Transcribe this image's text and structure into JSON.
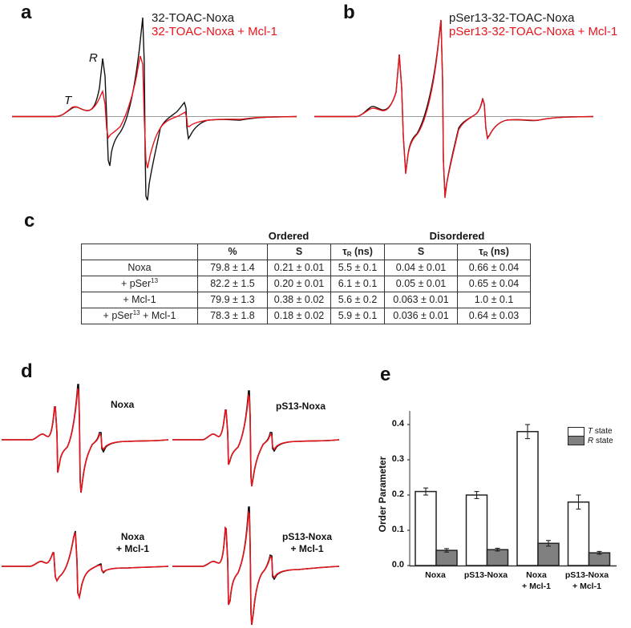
{
  "panels": {
    "a": {
      "label": "a",
      "legend": [
        "32-TOAC-Noxa",
        "32-TOAC-Noxa + Mcl-1"
      ],
      "annotations": {
        "T": "T",
        "R": "R"
      }
    },
    "b": {
      "label": "b",
      "legend": [
        "pSer13-32-TOAC-Noxa",
        "pSer13-32-TOAC-Noxa + Mcl-1"
      ]
    },
    "c": {
      "label": "c",
      "group_headers": {
        "ordered": "Ordered",
        "disordered": "Disordered"
      },
      "columns": [
        "",
        "%",
        "S",
        "τR (ns)",
        "S",
        "τR (ns)"
      ],
      "column_header_parts": {
        "tau": "τ",
        "tau_sub": "R",
        "tau_unit": " (ns)"
      },
      "rows": [
        {
          "name": "Noxa",
          "name_parts": [
            "Noxa"
          ],
          "pct": "79.8 ± 1.4",
          "s_ord": "0.21 ± 0.01",
          "tau_ord": "5.5 ± 0.1",
          "s_dis": "0.04 ± 0.01",
          "tau_dis": "0.66 ± 0.04"
        },
        {
          "name": "+ pSer13",
          "name_parts": [
            "+ pSer",
            "13",
            ""
          ],
          "pct": "82.2 ± 1.5",
          "s_ord": "0.20 ± 0.01",
          "tau_ord": "6.1 ± 0.1",
          "s_dis": "0.05 ± 0.01",
          "tau_dis": "0.65 ± 0.04"
        },
        {
          "name": "+ Mcl-1",
          "name_parts": [
            "+ Mcl-1"
          ],
          "pct": "79.9 ± 1.3",
          "s_ord": "0.38 ± 0.02",
          "tau_ord": "5.6 ± 0.2",
          "s_dis": "0.063 ± 0.01",
          "tau_dis": "1.0 ± 0.1"
        },
        {
          "name": "+ pSer13 + Mcl-1",
          "name_parts": [
            "+ pSer",
            "13",
            " + Mcl-1"
          ],
          "pct": "78.3 ± 1.8",
          "s_ord": "0.18 ± 0.02",
          "tau_ord": "5.9 ± 0.1",
          "s_dis": "0.036 ± 0.01",
          "tau_dis": "0.64 ± 0.03"
        }
      ]
    },
    "d": {
      "label": "d",
      "spectra_labels": [
        {
          "line1": "Noxa",
          "line2": ""
        },
        {
          "line1": "pS13-Noxa",
          "line2": ""
        },
        {
          "line1": "Noxa",
          "line2": "+ Mcl-1"
        },
        {
          "line1": "pS13-Noxa",
          "line2": "+ Mcl-1"
        }
      ]
    },
    "e": {
      "label": "e"
    }
  },
  "colors": {
    "experimental": "#111111",
    "simulated_or_bound": "#e8141c",
    "baseline": "#9a9a9a",
    "t_state_fill": "#ffffff",
    "r_state_fill": "#808080"
  },
  "chart_data": [
    {
      "type": "line",
      "title": "32-TOAC-Noxa EPR spectra",
      "panel": "a",
      "xlabel": "",
      "ylabel": "",
      "series": [
        {
          "name": "32-TOAC-Noxa",
          "color": "#111111"
        },
        {
          "name": "32-TOAC-Noxa + Mcl-1",
          "color": "#e8141c"
        }
      ],
      "annotations": [
        "T",
        "R"
      ],
      "grid": false
    },
    {
      "type": "line",
      "title": "pSer13-32-TOAC-Noxa EPR spectra",
      "panel": "b",
      "series": [
        {
          "name": "pSer13-32-TOAC-Noxa",
          "color": "#111111"
        },
        {
          "name": "pSer13-32-TOAC-Noxa + Mcl-1",
          "color": "#e8141c"
        }
      ],
      "grid": false
    },
    {
      "type": "table",
      "panel": "c",
      "columns": [
        "",
        "Ordered %",
        "Ordered S",
        "Ordered τR (ns)",
        "Disordered S",
        "Disordered τR (ns)"
      ],
      "rows": [
        [
          "Noxa",
          "79.8 ± 1.4",
          "0.21 ± 0.01",
          "5.5 ± 0.1",
          "0.04 ± 0.01",
          "0.66 ± 0.04"
        ],
        [
          "+ pSer13",
          "82.2 ± 1.5",
          "0.20 ± 0.01",
          "6.1 ± 0.1",
          "0.05 ± 0.01",
          "0.65 ± 0.04"
        ],
        [
          "+ Mcl-1",
          "79.9 ± 1.3",
          "0.38 ± 0.02",
          "5.6 ± 0.2",
          "0.063 ± 0.01",
          "1.0 ± 0.1"
        ],
        [
          "+ pSer13 + Mcl-1",
          "78.3 ± 1.8",
          "0.18 ± 0.02",
          "5.9 ± 0.1",
          "0.036 ± 0.01",
          "0.64 ± 0.03"
        ]
      ]
    },
    {
      "type": "line",
      "panel": "d",
      "title": "Experimental (black) vs simulated (red) spectra",
      "subplots": [
        "Noxa",
        "pS13-Noxa",
        "Noxa + Mcl-1",
        "pS13-Noxa + Mcl-1"
      ],
      "series": [
        {
          "name": "experimental",
          "color": "#111111"
        },
        {
          "name": "simulation",
          "color": "#e8141c"
        }
      ]
    },
    {
      "type": "bar",
      "panel": "e",
      "title": "",
      "xlabel": "",
      "ylabel": "Order Parameter",
      "ylim": [
        0,
        0.44
      ],
      "yticks": [
        "0.0",
        "0.1",
        "0.2",
        "0.3",
        "0.4"
      ],
      "categories": [
        "Noxa",
        "pS13-Noxa",
        "Noxa + Mcl-1",
        "pS13-Noxa + Mcl-1"
      ],
      "category_lines": [
        [
          "Noxa",
          ""
        ],
        [
          "pS13-Noxa",
          ""
        ],
        [
          "Noxa",
          "+ Mcl-1"
        ],
        [
          "pS13-Noxa",
          "+ Mcl-1"
        ]
      ],
      "series": [
        {
          "name": "T state",
          "name_parts": [
            "T",
            " state"
          ],
          "fill": "#ffffff",
          "values": [
            0.21,
            0.2,
            0.38,
            0.18
          ],
          "errors": [
            0.01,
            0.01,
            0.02,
            0.02
          ]
        },
        {
          "name": "R state",
          "name_parts": [
            "R",
            " state"
          ],
          "fill": "#808080",
          "values": [
            0.043,
            0.045,
            0.063,
            0.036
          ],
          "errors": [
            0.005,
            0.004,
            0.008,
            0.004
          ]
        }
      ],
      "legend_position": "upper right",
      "grid": false
    }
  ]
}
